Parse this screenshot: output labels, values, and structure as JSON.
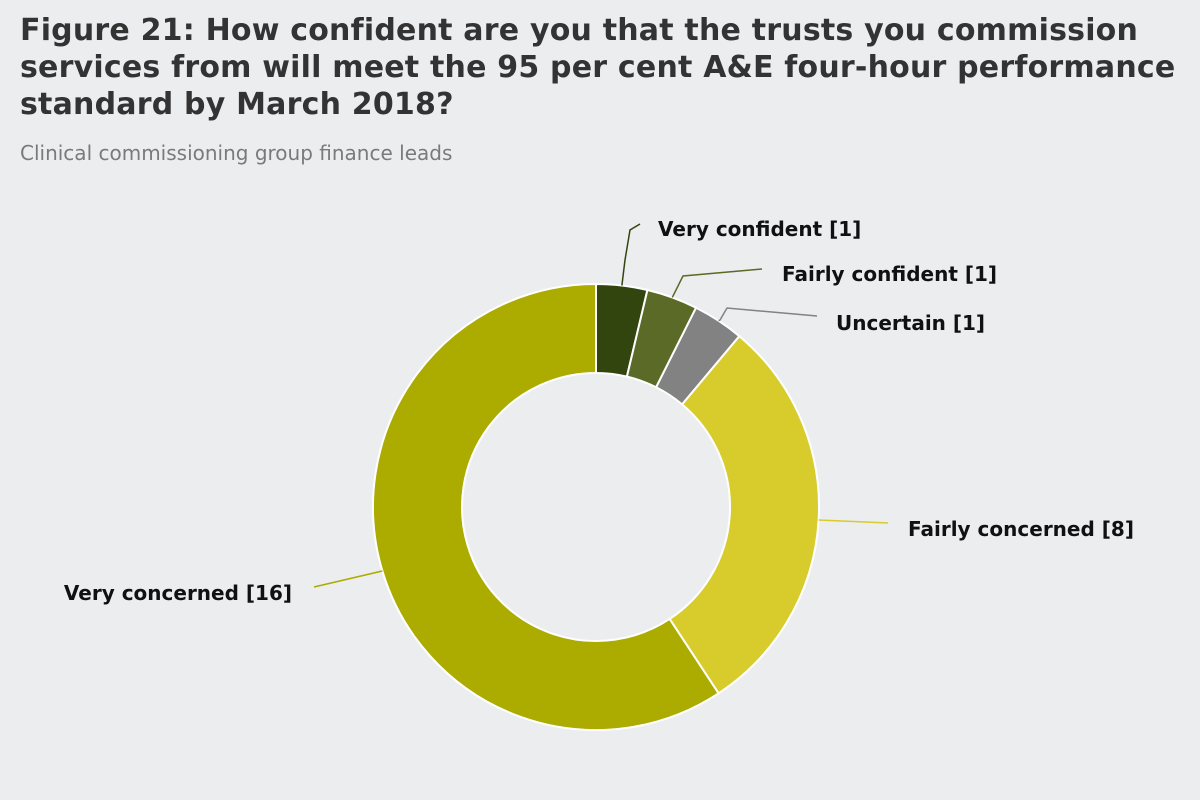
{
  "title": "Figure 21: How confident are you that the trusts you commission services from will meet the 95 per cent A&E four-hour performance standard by March 2018?",
  "subtitle": "Clinical commissioning group finance leads",
  "chart_data": {
    "type": "pie",
    "donut": true,
    "title": "Figure 21: How confident are you that the trusts you commission services from will meet the 95 per cent A&E four-hour performance standard by March 2018?",
    "subtitle": "Clinical commissioning group finance leads",
    "legend": "none",
    "slices": [
      {
        "label": "Very confident",
        "value": 1,
        "display": "Very confident [1]",
        "color": "#33450f"
      },
      {
        "label": "Fairly confident",
        "value": 1,
        "display": "Fairly confident [1]",
        "color": "#5b6a27"
      },
      {
        "label": "Uncertain",
        "value": 1,
        "display": "Uncertain [1]",
        "color": "#828282"
      },
      {
        "label": "Fairly concerned",
        "value": 8,
        "display": "Fairly concerned [8]",
        "color": "#d8cc2c"
      },
      {
        "label": "Very concerned",
        "value": 16,
        "display": "Very concerned [16]",
        "color": "#abab00"
      }
    ]
  }
}
